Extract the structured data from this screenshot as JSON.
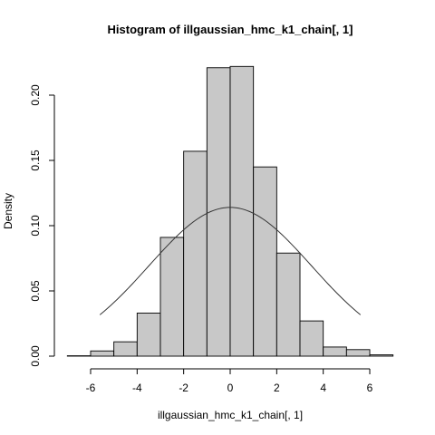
{
  "chart_data": {
    "type": "bar",
    "title": "Histogram of illgaussian_hmc_k1_chain[, 1]",
    "xlabel": "illgaussian_hmc_k1_chain[, 1]",
    "ylabel": "Density",
    "xlim": [
      -7,
      7
    ],
    "ylim": [
      0,
      0.22
    ],
    "x_ticks": [
      -6,
      -4,
      -2,
      0,
      2,
      4,
      6
    ],
    "x_tick_labels": [
      "-6",
      "-4",
      "-2",
      "0",
      "2",
      "4",
      "6"
    ],
    "y_ticks": [
      0,
      0.05,
      0.1,
      0.15,
      0.2
    ],
    "y_tick_labels": [
      "0.00",
      "0.05",
      "0.10",
      "0.15",
      "0.20"
    ],
    "bins": [
      {
        "x0": -7,
        "x1": -6,
        "density": 0.0003
      },
      {
        "x0": -6,
        "x1": -5,
        "density": 0.004
      },
      {
        "x0": -5,
        "x1": -4,
        "density": 0.011
      },
      {
        "x0": -4,
        "x1": -3,
        "density": 0.033
      },
      {
        "x0": -3,
        "x1": -2,
        "density": 0.091
      },
      {
        "x0": -2,
        "x1": -1,
        "density": 0.157
      },
      {
        "x0": -1,
        "x1": 0,
        "density": 0.221
      },
      {
        "x0": 0,
        "x1": 1,
        "density": 0.222
      },
      {
        "x0": 1,
        "x1": 2,
        "density": 0.145
      },
      {
        "x0": 2,
        "x1": 3,
        "density": 0.079
      },
      {
        "x0": 3,
        "x1": 4,
        "density": 0.027
      },
      {
        "x0": 4,
        "x1": 5,
        "density": 0.007
      },
      {
        "x0": 5,
        "x1": 6,
        "density": 0.005
      },
      {
        "x0": 6,
        "x1": 7,
        "density": 0.001
      }
    ],
    "density_curve": {
      "type": "normal",
      "mean": 0,
      "sd": 3.5,
      "x_range": [
        -5.6,
        5.6
      ]
    },
    "grid": false
  }
}
